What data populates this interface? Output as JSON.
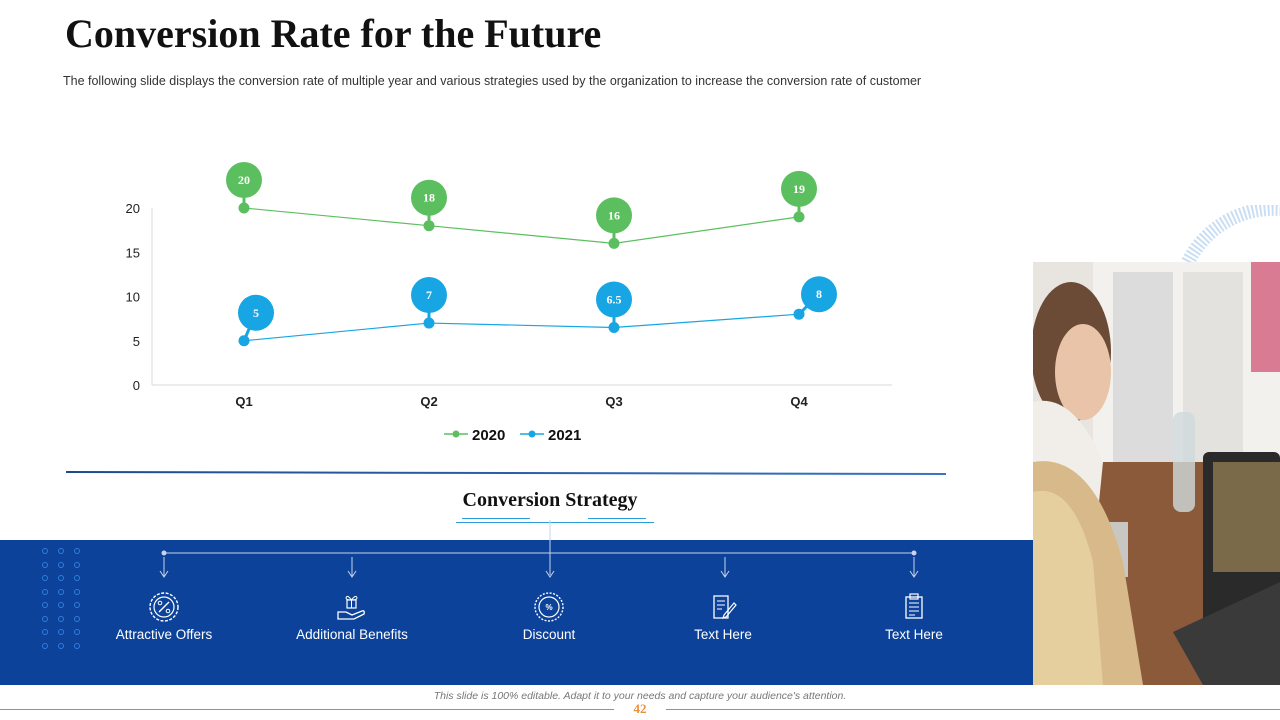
{
  "slide": {
    "title": "Conversion Rate for the Future",
    "subtitle": "The following  slide displays the conversion  rate of multiple year and various  strategies used by the organization  to increase the conversion  rate of customer",
    "page_number": "42",
    "footer_note": "This slide is 100% editable. Adapt it to your needs and capture your audience's attention."
  },
  "chart_data": {
    "type": "line",
    "categories": [
      "Q1",
      "Q2",
      "Q3",
      "Q4"
    ],
    "series": [
      {
        "name": "2020",
        "values": [
          20,
          18,
          16,
          19
        ],
        "labels": [
          "20",
          "18",
          "16",
          "19"
        ],
        "color": "#5cbf5f"
      },
      {
        "name": "2021",
        "values": [
          5,
          7,
          6.5,
          8
        ],
        "labels": [
          "5",
          "7",
          "6.5",
          "8"
        ],
        "color": "#17a6e3"
      }
    ],
    "y_ticks": [
      "0",
      "5",
      "10",
      "15",
      "20"
    ],
    "ylim": [
      0,
      20
    ],
    "legend": "bottom-center",
    "grid": false
  },
  "strategy": {
    "title": "Conversion  Strategy",
    "items": [
      {
        "label": "Attractive Offers",
        "icon": "percent-badge-icon"
      },
      {
        "label": "Additional Benefits",
        "icon": "hand-gift-icon"
      },
      {
        "label": "Discount",
        "icon": "discount-badge-icon"
      },
      {
        "label": "Text Here",
        "icon": "document-edit-icon"
      },
      {
        "label": "Text Here",
        "icon": "clipboard-icon"
      }
    ]
  },
  "colors": {
    "band": "#0c4299",
    "green": "#5cbf5f",
    "blue": "#17a6e3",
    "accent_orange": "#e8913a"
  }
}
